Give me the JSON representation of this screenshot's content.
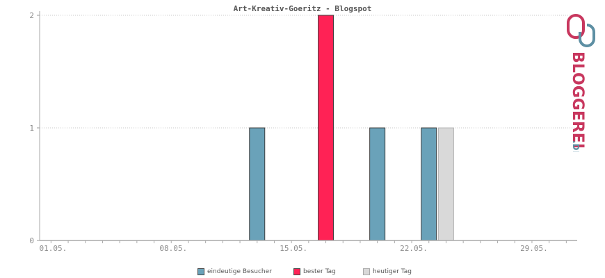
{
  "chart_data": {
    "type": "bar",
    "title": "Art-Kreativ-Goeritz - Blogspot",
    "xlabel": "",
    "ylabel": "",
    "ylim": [
      0,
      2
    ],
    "yticks": [
      "0",
      "1",
      "2"
    ],
    "xticks": [
      "01.05.",
      "08.05.",
      "15.05.",
      "22.05.",
      "29.05."
    ],
    "grid": true,
    "legend_position": "bottom",
    "series": [
      {
        "name": "eindeutige Besucher",
        "color": "#6aa2b9",
        "points": [
          {
            "day": 13,
            "value": 1
          },
          {
            "day": 20,
            "value": 1
          },
          {
            "day": 23,
            "value": 1
          }
        ]
      },
      {
        "name": "bester Tag",
        "color": "#ff2255",
        "points": [
          {
            "day": 17,
            "value": 2
          }
        ]
      },
      {
        "name": "heutiger Tag",
        "color": "#d9d9d9",
        "points": [
          {
            "day": 24,
            "value": 1
          }
        ]
      }
    ]
  },
  "logo": {
    "main": "BLOGGEREI",
    "suffix": ".DE"
  }
}
